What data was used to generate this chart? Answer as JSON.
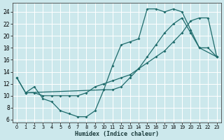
{
  "bg_color": "#cce8ec",
  "grid_color": "#ffffff",
  "line_color": "#1e6b6b",
  "xlabel": "Humidex (Indice chaleur)",
  "xlim": [
    -0.5,
    23.5
  ],
  "ylim": [
    5.5,
    25.5
  ],
  "yticks": [
    6,
    8,
    10,
    12,
    14,
    16,
    18,
    20,
    22,
    24
  ],
  "xticks": [
    0,
    1,
    2,
    3,
    4,
    5,
    6,
    7,
    8,
    9,
    10,
    11,
    12,
    13,
    14,
    15,
    16,
    17,
    18,
    19,
    20,
    21,
    22,
    23
  ],
  "line_A_x": [
    0,
    1,
    10,
    11,
    12,
    13,
    14,
    15,
    16,
    17,
    18,
    19,
    20,
    21,
    22,
    23
  ],
  "line_A_y": [
    13,
    10.5,
    11,
    15,
    18.5,
    19,
    19.5,
    24.5,
    24.5,
    24,
    24.5,
    24,
    21,
    18,
    18,
    16.5
  ],
  "line_B_x": [
    0,
    1,
    2,
    3,
    4,
    5,
    6,
    7,
    8,
    9,
    10,
    11,
    12,
    13,
    14,
    15,
    16,
    17,
    18,
    19,
    20,
    21,
    23
  ],
  "line_B_y": [
    13,
    10.5,
    11.5,
    9.5,
    9,
    7.5,
    7,
    6.5,
    6.5,
    7.5,
    11,
    11,
    11.5,
    13,
    14.5,
    16.5,
    18.5,
    20.5,
    22,
    23,
    20.5,
    18,
    16.5
  ],
  "line_C_x": [
    1,
    2,
    3,
    4,
    5,
    6,
    7,
    8,
    9,
    10,
    11,
    12,
    13,
    14,
    15,
    16,
    17,
    18,
    19,
    20,
    21,
    22,
    23
  ],
  "line_C_y": [
    10.5,
    10.5,
    10,
    10,
    10,
    10,
    10,
    10.5,
    11.5,
    12,
    12.5,
    13,
    13.5,
    14.5,
    15.5,
    16.5,
    17.5,
    19,
    20.5,
    22.5,
    23,
    23,
    16.5
  ]
}
